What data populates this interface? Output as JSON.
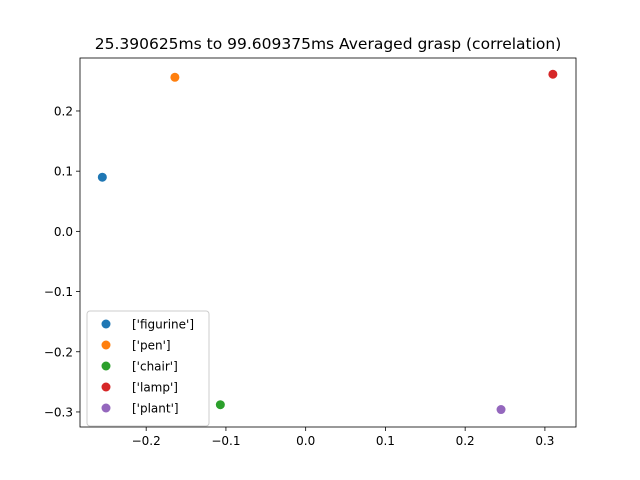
{
  "chart_data": {
    "type": "scatter",
    "title": "25.390625ms to 99.609375ms Averaged grasp (correlation)",
    "xlabel": "",
    "ylabel": "",
    "xlim": [
      -0.283,
      0.339
    ],
    "ylim": [
      -0.325,
      0.288
    ],
    "x_ticks": [
      -0.2,
      -0.1,
      0.0,
      0.1,
      0.2,
      0.3
    ],
    "x_tick_labels": [
      "−0.2",
      "−0.1",
      "0.0",
      "0.1",
      "0.2",
      "0.3"
    ],
    "y_ticks": [
      0.2,
      0.1,
      0.0,
      -0.1,
      -0.2,
      -0.3
    ],
    "y_tick_labels": [
      "0.2",
      "0.1",
      "0.0",
      "−0.1",
      "−0.2",
      "−0.3"
    ],
    "grid": false,
    "legend_position": "lower-left",
    "series": [
      {
        "name": "['figurine']",
        "color": "#1f77b4",
        "x": -0.255,
        "y": 0.09
      },
      {
        "name": "['pen']",
        "color": "#ff7f0e",
        "x": -0.164,
        "y": 0.256
      },
      {
        "name": "['chair']",
        "color": "#2ca02c",
        "x": -0.107,
        "y": -0.288
      },
      {
        "name": "['lamp']",
        "color": "#d62728",
        "x": 0.31,
        "y": 0.261
      },
      {
        "name": "['plant']",
        "color": "#9467bd",
        "x": 0.245,
        "y": -0.296
      }
    ]
  }
}
